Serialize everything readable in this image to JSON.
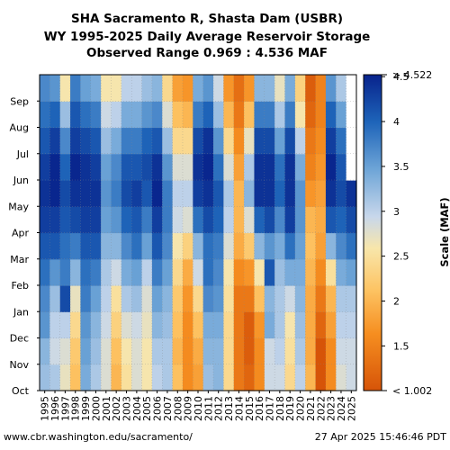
{
  "chart_data": {
    "type": "heatmap",
    "title_lines": [
      "SHA Sacramento R, Shasta Dam (USBR)",
      "WY 1995-2025 Daily Average Reservoir Storage",
      "Observed Range 0.969 : 4.536 MAF"
    ],
    "x_categories": [
      "1995",
      "1996",
      "1997",
      "1998",
      "1999",
      "2000",
      "2001",
      "2002",
      "2003",
      "2004",
      "2005",
      "2006",
      "2007",
      "2008",
      "2009",
      "2010",
      "2011",
      "2012",
      "2013",
      "2014",
      "2015",
      "2016",
      "2017",
      "2018",
      "2019",
      "2020",
      "2021",
      "2022",
      "2023",
      "2024",
      "2025"
    ],
    "y_categories": [
      "Oct",
      "Nov",
      "Dec",
      "Jan",
      "Feb",
      "Mar",
      "Apr",
      "May",
      "Jun",
      "Jul",
      "Aug",
      "Sep"
    ],
    "values_by_water_year_month": [
      [
        3.2,
        3.3,
        3.6,
        3.7,
        3.9,
        4.1,
        4.3,
        4.4,
        4.3,
        4.1,
        3.9,
        3.7
      ],
      [
        3.1,
        2.9,
        3.0,
        3.2,
        3.6,
        4.1,
        4.3,
        4.5,
        4.5,
        4.3,
        4.0,
        3.6
      ],
      [
        2.7,
        2.8,
        3.0,
        4.2,
        3.8,
        3.9,
        4.1,
        4.2,
        4.0,
        3.7,
        3.2,
        2.6
      ],
      [
        2.1,
        2.2,
        2.4,
        2.7,
        3.3,
        3.8,
        4.2,
        4.4,
        4.5,
        4.3,
        4.1,
        3.8
      ],
      [
        3.4,
        3.5,
        3.6,
        3.8,
        3.9,
        4.1,
        4.3,
        4.4,
        4.4,
        4.2,
        3.9,
        3.5
      ],
      [
        3.1,
        3.2,
        3.3,
        3.5,
        3.8,
        4.1,
        4.3,
        4.4,
        4.3,
        4.1,
        3.8,
        3.4
      ],
      [
        2.8,
        2.8,
        2.9,
        3.0,
        3.1,
        3.3,
        3.5,
        3.6,
        3.5,
        3.2,
        2.9,
        2.6
      ],
      [
        2.0,
        2.1,
        2.3,
        2.5,
        2.9,
        3.3,
        3.6,
        3.8,
        3.7,
        3.4,
        3.0,
        2.6
      ],
      [
        2.5,
        2.6,
        2.8,
        3.1,
        3.4,
        3.7,
        4.0,
        4.2,
        4.1,
        3.8,
        3.4,
        3.0
      ],
      [
        2.8,
        2.8,
        2.9,
        3.2,
        3.5,
        3.9,
        4.1,
        4.3,
        4.1,
        3.8,
        3.4,
        3.0
      ],
      [
        2.6,
        2.6,
        2.7,
        2.8,
        3.0,
        3.5,
        3.8,
        4.1,
        4.2,
        4.0,
        3.6,
        3.2
      ],
      [
        3.0,
        3.1,
        3.3,
        3.5,
        3.8,
        4.1,
        4.3,
        4.5,
        4.4,
        4.1,
        3.7,
        3.3
      ],
      [
        3.1,
        3.1,
        3.2,
        3.3,
        3.5,
        3.7,
        3.8,
        3.8,
        3.6,
        3.2,
        2.8,
        2.4
      ],
      [
        2.1,
        2.0,
        2.1,
        2.2,
        2.4,
        2.6,
        2.9,
        3.0,
        2.8,
        2.4,
        2.1,
        1.8
      ],
      [
        1.6,
        1.6,
        1.6,
        1.7,
        1.9,
        2.3,
        2.8,
        3.0,
        2.8,
        2.4,
        2.0,
        1.7
      ],
      [
        1.8,
        1.9,
        2.1,
        2.4,
        2.9,
        3.3,
        3.9,
        4.3,
        4.4,
        4.2,
        3.8,
        3.4
      ],
      [
        3.2,
        3.3,
        3.4,
        3.7,
        3.9,
        3.9,
        4.2,
        4.4,
        4.5,
        4.4,
        4.0,
        3.6
      ],
      [
        3.3,
        3.3,
        3.4,
        3.6,
        3.7,
        3.8,
        4.0,
        4.1,
        3.9,
        3.6,
        3.2,
        2.9
      ],
      [
        2.4,
        2.4,
        2.4,
        2.5,
        2.6,
        2.8,
        3.0,
        3.1,
        2.8,
        2.4,
        2.0,
        1.7
      ],
      [
        1.4,
        1.4,
        1.4,
        1.4,
        1.6,
        1.9,
        2.0,
        2.0,
        1.8,
        1.6,
        1.4,
        1.3
      ],
      [
        1.2,
        1.1,
        1.1,
        1.4,
        1.7,
        2.2,
        2.8,
        3.3,
        3.1,
        2.7,
        2.1,
        1.7
      ],
      [
        1.6,
        1.6,
        1.7,
        2.1,
        2.6,
        3.3,
        4.0,
        4.4,
        4.4,
        4.2,
        3.8,
        3.3
      ],
      [
        2.9,
        2.9,
        3.4,
        3.3,
        4.1,
        3.6,
        4.2,
        4.4,
        4.4,
        4.2,
        3.8,
        3.3
      ],
      [
        2.9,
        3.0,
        3.1,
        3.1,
        3.2,
        3.4,
        3.7,
        4.0,
        3.9,
        3.5,
        3.1,
        2.7
      ],
      [
        2.4,
        2.5,
        2.6,
        2.9,
        3.4,
        3.9,
        4.3,
        4.4,
        4.4,
        4.2,
        3.8,
        3.4
      ],
      [
        3.0,
        3.1,
        3.2,
        3.3,
        3.4,
        3.5,
        3.6,
        3.6,
        3.4,
        3.0,
        2.6,
        2.3
      ],
      [
        2.0,
        1.9,
        1.9,
        1.9,
        2.0,
        2.1,
        2.0,
        1.7,
        1.5,
        1.4,
        1.2,
        1.1
      ],
      [
        1.0,
        1.0,
        1.2,
        1.4,
        1.6,
        1.8,
        1.9,
        1.8,
        1.7,
        1.6,
        1.5,
        1.5
      ],
      [
        1.6,
        1.6,
        1.8,
        2.0,
        2.5,
        3.3,
        4.1,
        4.4,
        4.5,
        4.3,
        4.0,
        3.6
      ],
      [
        2.8,
        2.9,
        3.0,
        3.1,
        3.4,
        3.7,
        4.0,
        4.2,
        4.1,
        3.9,
        3.5,
        3.1
      ],
      [
        2.9,
        2.9,
        3.0,
        3.1,
        3.5,
        3.9,
        4.2,
        4.4,
        null,
        null,
        null,
        null
      ]
    ],
    "colorbar": {
      "label": "Scale (MAF)",
      "min": 1.002,
      "max": 4.522,
      "ticks": [
        1.5,
        2,
        2.5,
        3,
        3.5,
        4,
        4.5
      ],
      "min_label": "< 1.002",
      "max_label": "> 4.522",
      "colormap": "RdYlBu (orange → light yellow → blue)"
    },
    "grid": true,
    "legend": "colorbar right"
  },
  "footer": {
    "url": "www.cbr.washington.edu/sacramento/",
    "timestamp": "27 Apr 2025 15:46:46 PDT"
  },
  "colors": {
    "low": "#d95f0e",
    "mid": "#f2f0c8",
    "high": "#08306b"
  }
}
